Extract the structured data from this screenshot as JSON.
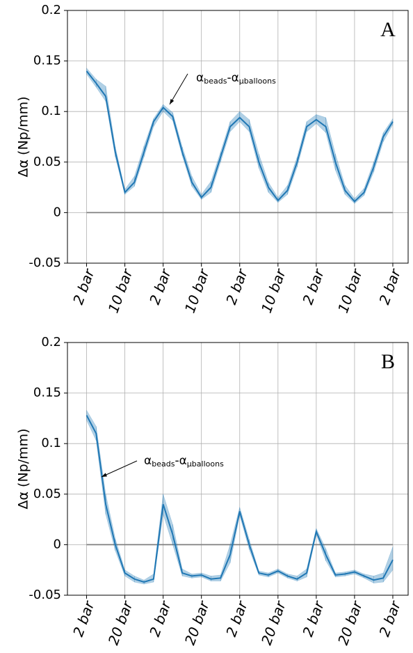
{
  "chart_data": [
    {
      "type": "line",
      "panel_label": "A",
      "ylabel": "Δα (Np/mm)",
      "xlim": [
        -0.5,
        8.4
      ],
      "ylim": [
        -0.05,
        0.2
      ],
      "yticks": [
        0.2,
        0.15,
        0.1,
        0.05,
        0,
        -0.05
      ],
      "grid": true,
      "hline": 0,
      "hline_color": "#808080",
      "xticks": [
        {
          "value": 0,
          "label": "2 bar"
        },
        {
          "value": 1,
          "label": "10 bar"
        },
        {
          "value": 2,
          "label": "2 bar"
        },
        {
          "value": 3,
          "label": "10 bar"
        },
        {
          "value": 4,
          "label": "2 bar"
        },
        {
          "value": 5,
          "label": "10 bar"
        },
        {
          "value": 6,
          "label": "2 bar"
        },
        {
          "value": 7,
          "label": "10 bar"
        },
        {
          "value": 8,
          "label": "2 bar"
        }
      ],
      "annotation": {
        "text": "α",
        "sub": "beads",
        "joiner": "-",
        "text2": "α",
        "sub2": "μballoons"
      },
      "series": [
        {
          "color": "#1f77b4",
          "x": [
            0,
            0.25,
            0.5,
            0.75,
            1,
            1.25,
            1.5,
            1.75,
            2,
            2.25,
            2.5,
            2.75,
            3,
            3.25,
            3.5,
            3.75,
            4,
            4.25,
            4.5,
            4.75,
            5,
            5.25,
            5.5,
            5.75,
            6,
            6.25,
            6.5,
            6.75,
            7,
            7.25,
            7.5,
            7.75,
            8
          ],
          "values": [
            0.14,
            0.128,
            0.115,
            0.06,
            0.02,
            0.03,
            0.06,
            0.09,
            0.104,
            0.095,
            0.06,
            0.03,
            0.015,
            0.025,
            0.055,
            0.085,
            0.094,
            0.085,
            0.05,
            0.025,
            0.012,
            0.022,
            0.05,
            0.085,
            0.092,
            0.085,
            0.05,
            0.022,
            0.011,
            0.02,
            0.045,
            0.075,
            0.09
          ],
          "upper": [
            0.143,
            0.132,
            0.125,
            0.065,
            0.023,
            0.036,
            0.066,
            0.093,
            0.107,
            0.099,
            0.065,
            0.036,
            0.018,
            0.031,
            0.06,
            0.09,
            0.1,
            0.092,
            0.058,
            0.03,
            0.015,
            0.027,
            0.055,
            0.09,
            0.097,
            0.094,
            0.058,
            0.027,
            0.014,
            0.024,
            0.05,
            0.079,
            0.093
          ],
          "lower": [
            0.137,
            0.124,
            0.11,
            0.055,
            0.018,
            0.026,
            0.055,
            0.085,
            0.1,
            0.091,
            0.056,
            0.026,
            0.013,
            0.02,
            0.05,
            0.08,
            0.09,
            0.08,
            0.044,
            0.02,
            0.01,
            0.018,
            0.045,
            0.08,
            0.088,
            0.079,
            0.042,
            0.018,
            0.009,
            0.017,
            0.04,
            0.07,
            0.087
          ]
        }
      ]
    },
    {
      "type": "line",
      "panel_label": "B",
      "ylabel": "Δα (Np/mm)",
      "xlim": [
        -0.5,
        8.4
      ],
      "ylim": [
        -0.05,
        0.2
      ],
      "yticks": [
        0.2,
        0.15,
        0.1,
        0.05,
        0,
        -0.05
      ],
      "grid": true,
      "hline": 0,
      "hline_color": "#808080",
      "xticks": [
        {
          "value": 0,
          "label": "2 bar"
        },
        {
          "value": 1,
          "label": "20 bar"
        },
        {
          "value": 2,
          "label": "2 bar"
        },
        {
          "value": 3,
          "label": "20 bar"
        },
        {
          "value": 4,
          "label": "2 bar"
        },
        {
          "value": 5,
          "label": "20 bar"
        },
        {
          "value": 6,
          "label": "2 bar"
        },
        {
          "value": 7,
          "label": "20 bar"
        },
        {
          "value": 8,
          "label": "2 bar"
        }
      ],
      "annotation": {
        "text": "α",
        "sub": "beads",
        "joiner": "-",
        "text2": "α",
        "sub2": "μballoons"
      },
      "series": [
        {
          "color": "#1f77b4",
          "x": [
            0,
            0.25,
            0.5,
            0.75,
            1,
            1.25,
            1.5,
            1.75,
            2,
            2.25,
            2.5,
            2.75,
            3,
            3.25,
            3.5,
            3.75,
            4,
            4.25,
            4.5,
            4.75,
            5,
            5.25,
            5.5,
            5.75,
            6,
            6.25,
            6.5,
            6.75,
            7,
            7.25,
            7.5,
            7.75,
            8
          ],
          "values": [
            0.128,
            0.11,
            0.04,
            0.0,
            -0.028,
            -0.034,
            -0.037,
            -0.034,
            0.04,
            0.01,
            -0.028,
            -0.031,
            -0.03,
            -0.034,
            -0.033,
            -0.01,
            0.033,
            0.0,
            -0.028,
            -0.03,
            -0.026,
            -0.031,
            -0.034,
            -0.028,
            0.013,
            -0.01,
            -0.03,
            -0.029,
            -0.027,
            -0.031,
            -0.035,
            -0.033,
            -0.015
          ],
          "upper": [
            0.133,
            0.117,
            0.05,
            0.006,
            -0.025,
            -0.031,
            -0.035,
            -0.029,
            0.05,
            0.02,
            -0.024,
            -0.029,
            -0.028,
            -0.031,
            -0.03,
            0.0,
            0.037,
            0.005,
            -0.026,
            -0.028,
            -0.024,
            -0.029,
            -0.031,
            -0.024,
            0.016,
            -0.004,
            -0.028,
            -0.027,
            -0.025,
            -0.029,
            -0.031,
            -0.028,
            -0.002
          ],
          "lower": [
            0.123,
            0.103,
            0.03,
            -0.006,
            -0.031,
            -0.037,
            -0.039,
            -0.037,
            0.03,
            0.0,
            -0.031,
            -0.033,
            -0.032,
            -0.036,
            -0.036,
            -0.018,
            0.029,
            -0.005,
            -0.03,
            -0.032,
            -0.028,
            -0.033,
            -0.036,
            -0.032,
            0.01,
            -0.016,
            -0.032,
            -0.031,
            -0.029,
            -0.033,
            -0.038,
            -0.037,
            -0.025
          ]
        }
      ]
    }
  ]
}
